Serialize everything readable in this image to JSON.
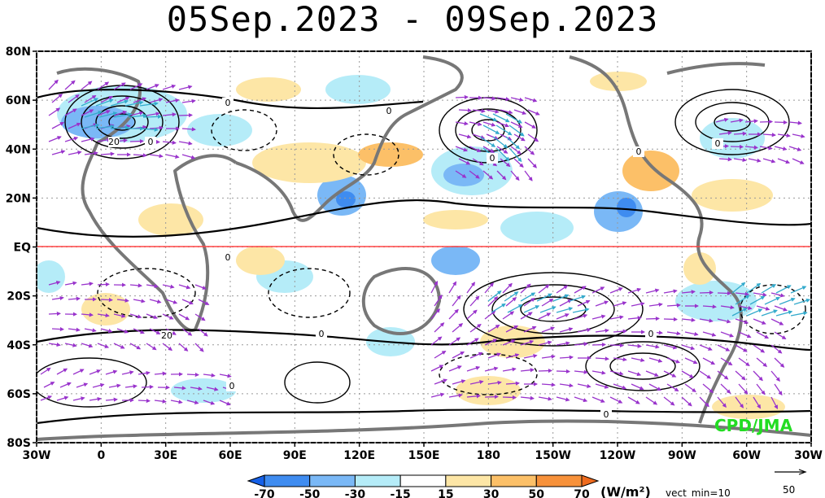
{
  "title": "05Sep.2023 - 09Sep.2023",
  "credit": "CPD/JMA",
  "lat_labels": [
    "80N",
    "60N",
    "40N",
    "20N",
    "EQ",
    "20S",
    "40S",
    "60S",
    "80S"
  ],
  "lon_labels": [
    "30W",
    "0",
    "30E",
    "60E",
    "90E",
    "120E",
    "150E",
    "180",
    "150W",
    "120W",
    "90W",
    "60W",
    "30W"
  ],
  "legend": {
    "levels": [
      "-70",
      "-50",
      "-30",
      "-15",
      "15",
      "30",
      "50",
      "70"
    ],
    "colors": [
      "#1560e8",
      "#3f8cf0",
      "#7ab8f6",
      "#b5ecf8",
      "#ffffff",
      "#fde6a6",
      "#fcc068",
      "#f7913a",
      "#ef6b1e"
    ],
    "unit": "(W/m²)",
    "vect_min": "vect_min=10",
    "ref_vector": "50"
  },
  "contour_labels": [
    "20",
    "0",
    "0",
    "0",
    "0",
    "0",
    "20",
    "0",
    "0",
    "0",
    "0",
    "0",
    "0"
  ],
  "colors": {
    "coast": "#777777",
    "equator": "#ff4444",
    "vector": "#9933cc",
    "vector_strong": "#33aacc"
  }
}
